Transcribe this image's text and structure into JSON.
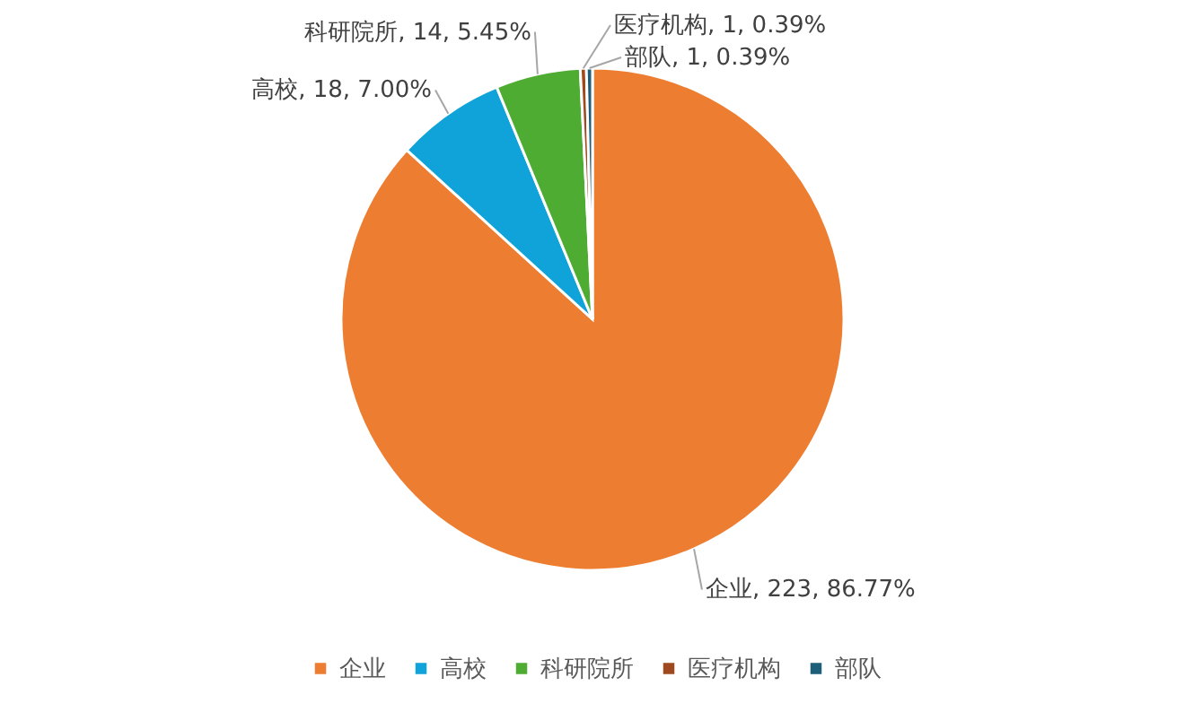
{
  "chart_data": {
    "type": "pie",
    "categories": [
      "企业",
      "高校",
      "科研院所",
      "医疗机构",
      "部队"
    ],
    "values": [
      223,
      18,
      14,
      1,
      1
    ],
    "colors": [
      "#ed7d31",
      "#0fa3d9",
      "#4eac33",
      "#9e4a1e",
      "#1d5f78"
    ],
    "value_labels": [
      "企业, 223, 86.77%",
      "高校, 18, 7.00%",
      "科研院所, 14, 5.45%",
      "医疗机构, 1, 0.39%",
      "部队, 1, 0.39%"
    ],
    "legend": "bottom"
  }
}
